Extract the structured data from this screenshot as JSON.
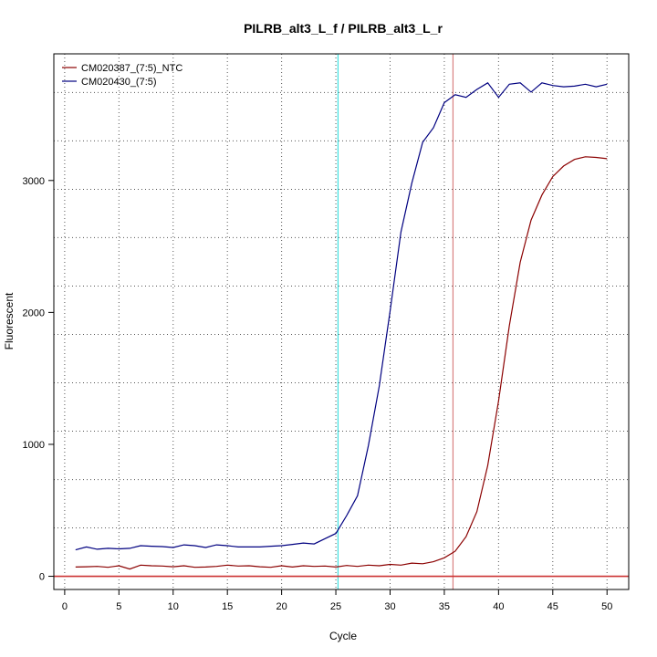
{
  "chart_data": {
    "type": "line",
    "title": "PILRB_alt3_L_f / PILRB_alt3_L_r",
    "xlabel": "Cycle",
    "ylabel": "Fluorescent",
    "xlim": [
      -1.0,
      52.0
    ],
    "ylim": [
      -100,
      3960
    ],
    "x_ticks": [
      0,
      5,
      10,
      15,
      20,
      25,
      30,
      35,
      40,
      45,
      50
    ],
    "y_ticks": [
      0,
      1000,
      2000,
      3000
    ],
    "x_grid": [
      0,
      5,
      10,
      15,
      20,
      25,
      30,
      35,
      40,
      45,
      50
    ],
    "y_grid": [
      0,
      367,
      733,
      1100,
      1467,
      1833,
      2200,
      2567,
      2933,
      3300,
      3667
    ],
    "grid": true,
    "legend_position": "top-left",
    "threshold_y": 0,
    "threshold_color": "#cc3333",
    "vertical_lines": [
      {
        "x": 25.2,
        "color": "#40e0e0"
      },
      {
        "x": 35.8,
        "color": "#d98080"
      }
    ],
    "series": [
      {
        "name": "CM020387_(7:5)_NTC",
        "color": "#8b0000",
        "x": [
          1,
          2,
          3,
          4,
          5,
          6,
          7,
          8,
          9,
          10,
          11,
          12,
          13,
          14,
          15,
          16,
          17,
          18,
          19,
          20,
          21,
          22,
          23,
          24,
          25,
          26,
          27,
          28,
          29,
          30,
          31,
          32,
          33,
          34,
          35,
          36,
          37,
          38,
          39,
          40,
          41,
          42,
          43,
          44,
          45,
          46,
          47,
          48,
          49,
          50
        ],
        "y": [
          70,
          72,
          75,
          68,
          80,
          55,
          85,
          80,
          78,
          72,
          80,
          68,
          70,
          75,
          85,
          78,
          80,
          72,
          68,
          80,
          70,
          80,
          75,
          78,
          70,
          82,
          75,
          85,
          80,
          90,
          85,
          100,
          95,
          110,
          140,
          190,
          300,
          490,
          840,
          1330,
          1900,
          2380,
          2700,
          2890,
          3030,
          3110,
          3160,
          3180,
          3175,
          3165
        ]
      },
      {
        "name": "CM020430_(7:5)",
        "color": "#000080",
        "x": [
          1,
          2,
          3,
          4,
          5,
          6,
          7,
          8,
          9,
          10,
          11,
          12,
          13,
          14,
          15,
          16,
          17,
          18,
          19,
          20,
          21,
          22,
          23,
          24,
          25,
          26,
          27,
          28,
          29,
          30,
          31,
          32,
          33,
          34,
          35,
          36,
          37,
          38,
          39,
          40,
          41,
          42,
          43,
          44,
          45,
          46,
          47,
          48,
          49,
          50
        ],
        "y": [
          200,
          222,
          205,
          212,
          208,
          212,
          232,
          228,
          225,
          218,
          238,
          232,
          218,
          238,
          232,
          222,
          222,
          222,
          228,
          232,
          242,
          252,
          245,
          285,
          325,
          460,
          610,
          990,
          1440,
          2010,
          2610,
          2980,
          3290,
          3400,
          3590,
          3650,
          3630,
          3690,
          3740,
          3630,
          3730,
          3740,
          3670,
          3740,
          3720,
          3710,
          3715,
          3730,
          3710,
          3730
        ]
      }
    ]
  }
}
